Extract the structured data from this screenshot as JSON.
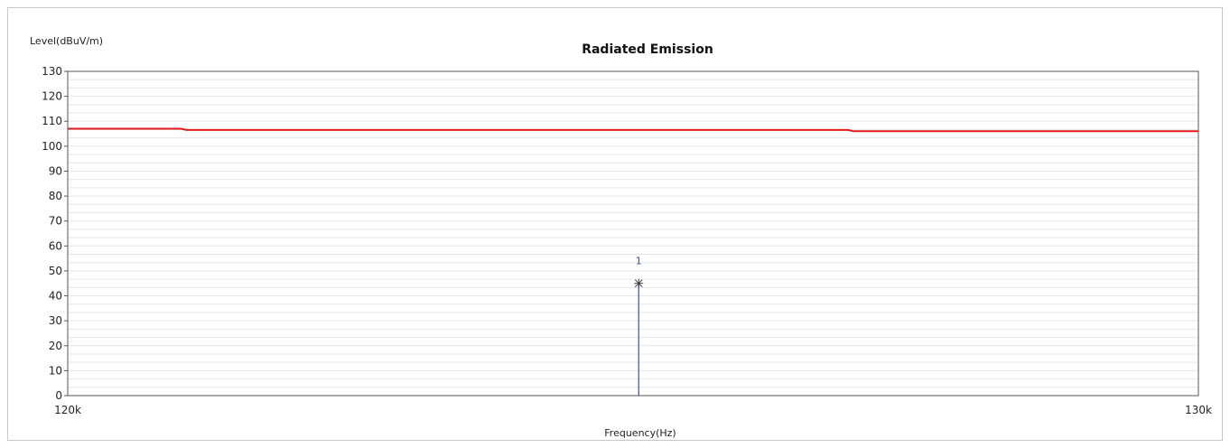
{
  "chart_data": {
    "type": "line",
    "title": "Radiated Emission",
    "ylabel": "Level(dBuV/m)",
    "xlabel": "Frequency(Hz)",
    "xlim": [
      120000,
      130000
    ],
    "ylim": [
      0,
      130
    ],
    "x_tick_labels": [
      "120k",
      "130k"
    ],
    "y_ticks": [
      0,
      10,
      20,
      30,
      40,
      50,
      60,
      70,
      80,
      90,
      100,
      110,
      120,
      130
    ],
    "grid": true,
    "series": [
      {
        "color": "#e31a1c",
        "x": [
          120000,
          121000,
          121050,
          126900,
          126950,
          130000
        ],
        "y": [
          107,
          107,
          106.5,
          106.5,
          106,
          106
        ]
      }
    ],
    "markers": [
      {
        "label": "1",
        "x": 125050,
        "y": 45,
        "color": "#3b4fb8"
      }
    ]
  }
}
